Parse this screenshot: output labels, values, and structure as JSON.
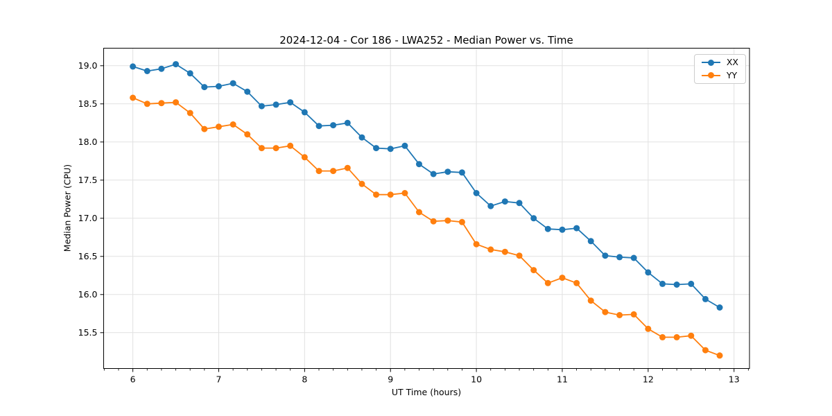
{
  "chart_data": {
    "type": "line",
    "title": "2024-12-04 - Cor 186 - LWA252 - Median Power vs. Time",
    "xlabel": "UT Time (hours)",
    "ylabel": "Median Power (CPU)",
    "xlim": [
      5.66,
      13.18
    ],
    "ylim": [
      15.03,
      19.23
    ],
    "xticks": [
      6,
      7,
      8,
      9,
      10,
      11,
      12,
      13
    ],
    "yticks": [
      15.5,
      16.0,
      16.5,
      17.0,
      17.5,
      18.0,
      18.5,
      19.0
    ],
    "x_minor_step": 0.1666667,
    "grid": true,
    "grid_color": "#e1e1e1",
    "spine_color": "#000000",
    "legend_position": "upper right",
    "x": [
      6.0,
      6.167,
      6.333,
      6.5,
      6.667,
      6.833,
      7.0,
      7.167,
      7.333,
      7.5,
      7.667,
      7.833,
      8.0,
      8.167,
      8.333,
      8.5,
      8.667,
      8.833,
      9.0,
      9.167,
      9.333,
      9.5,
      9.667,
      9.833,
      10.0,
      10.167,
      10.333,
      10.5,
      10.667,
      10.833,
      11.0,
      11.167,
      11.333,
      11.5,
      11.667,
      11.833,
      12.0,
      12.167,
      12.333,
      12.5,
      12.667,
      12.833
    ],
    "series": [
      {
        "name": "XX",
        "color": "#1f77b4",
        "values": [
          18.99,
          18.93,
          18.96,
          19.02,
          18.9,
          18.72,
          18.73,
          18.77,
          18.66,
          18.47,
          18.49,
          18.52,
          18.39,
          18.21,
          18.22,
          18.25,
          18.06,
          17.92,
          17.91,
          17.95,
          17.71,
          17.58,
          17.61,
          17.6,
          17.33,
          17.16,
          17.22,
          17.2,
          17.0,
          16.86,
          16.85,
          16.87,
          16.7,
          16.51,
          16.49,
          16.48,
          16.29,
          16.14,
          16.13,
          16.14,
          15.94,
          15.83
        ]
      },
      {
        "name": "YY",
        "color": "#ff7f0e",
        "values": [
          18.58,
          18.5,
          18.51,
          18.52,
          18.38,
          18.17,
          18.2,
          18.23,
          18.1,
          17.92,
          17.92,
          17.95,
          17.8,
          17.62,
          17.62,
          17.66,
          17.45,
          17.31,
          17.31,
          17.33,
          17.08,
          16.96,
          16.97,
          16.95,
          16.66,
          16.59,
          16.56,
          16.51,
          16.32,
          16.15,
          16.22,
          16.15,
          15.92,
          15.77,
          15.73,
          15.74,
          15.55,
          15.44,
          15.44,
          15.46,
          15.27,
          15.2
        ]
      }
    ]
  }
}
